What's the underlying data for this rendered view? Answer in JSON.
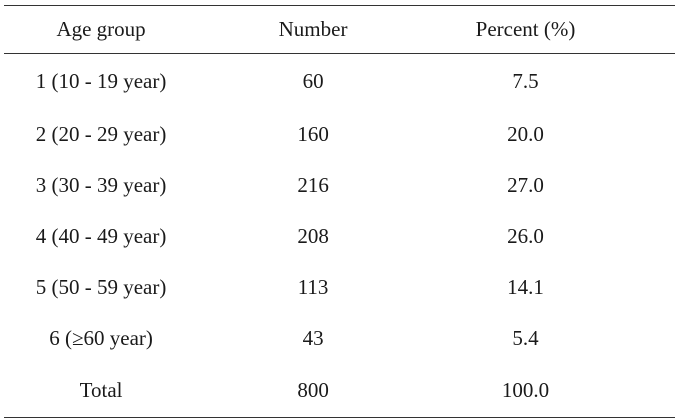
{
  "table": {
    "headers": {
      "age_group": "Age group",
      "number": "Number",
      "percent": "Percent (%)"
    },
    "rows": [
      {
        "age_group": "1 (10 - 19 year)",
        "number": "60",
        "percent": "7.5"
      },
      {
        "age_group": "2 (20 - 29 year)",
        "number": "160",
        "percent": "20.0"
      },
      {
        "age_group": "3 (30 - 39 year)",
        "number": "216",
        "percent": "27.0"
      },
      {
        "age_group": "4 (40 - 49 year)",
        "number": "208",
        "percent": "26.0"
      },
      {
        "age_group": "5 (50 - 59 year)",
        "number": "113",
        "percent": "14.1"
      },
      {
        "age_group": "6 (≥60 year)",
        "number": "43",
        "percent": "5.4"
      }
    ],
    "total": {
      "label": "Total",
      "number": "800",
      "percent": "100.0"
    }
  }
}
